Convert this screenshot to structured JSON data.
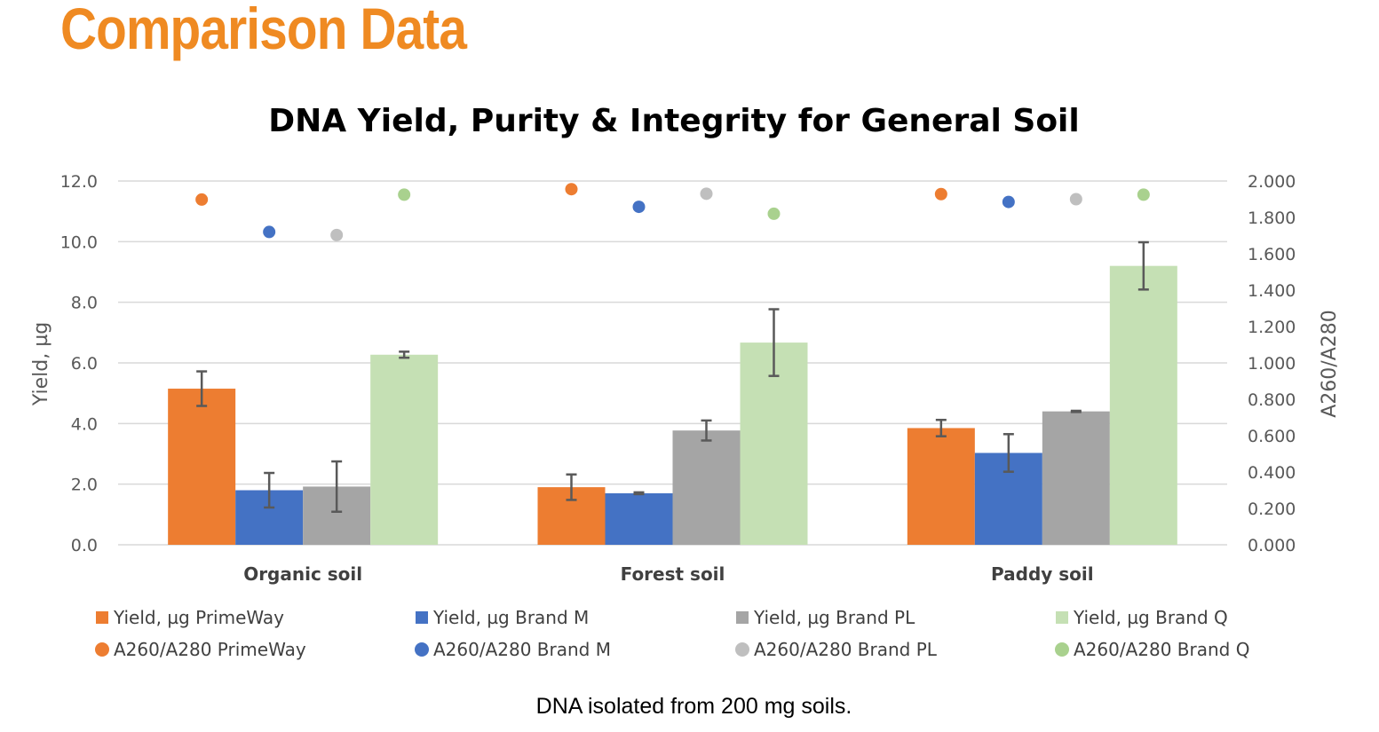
{
  "heading": "Comparison Data",
  "caption": "DNA isolated from 200 mg soils.",
  "chart_data": {
    "type": "bar",
    "title": "DNA Yield, Purity & Integrity for General Soil",
    "categories": [
      "Organic soil",
      "Forest soil",
      "Paddy soil"
    ],
    "ylabel": "Yield, µg",
    "y2label": "A260/A280",
    "ylim": [
      0,
      12
    ],
    "y2lim": [
      0,
      2
    ],
    "yticks": [
      "0.0",
      "2.0",
      "4.0",
      "6.0",
      "8.0",
      "10.0",
      "12.0"
    ],
    "y2ticks": [
      "0.000",
      "0.200",
      "0.400",
      "0.600",
      "0.800",
      "1.000",
      "1.200",
      "1.400",
      "1.600",
      "1.800",
      "2.000"
    ],
    "grid": true,
    "legend_position": "bottom",
    "series": [
      {
        "name": "Yield, µg PrimeWay",
        "kind": "bar",
        "axis": "left",
        "color": "#ed7d31",
        "values": [
          5.15,
          1.9,
          3.85
        ],
        "errors": [
          0.57,
          0.42,
          0.27
        ]
      },
      {
        "name": "Yield, µg Brand M",
        "kind": "bar",
        "axis": "left",
        "color": "#4472c4",
        "values": [
          1.8,
          1.7,
          3.03
        ],
        "errors": [
          0.57,
          0.03,
          0.62
        ]
      },
      {
        "name": "Yield, µg Brand PL",
        "kind": "bar",
        "axis": "left",
        "color": "#a5a5a5",
        "values": [
          1.92,
          3.77,
          4.4
        ],
        "errors": [
          0.83,
          0.33,
          0.02
        ]
      },
      {
        "name": "Yield, µg Brand Q",
        "kind": "bar",
        "axis": "left",
        "color": "#c5e0b4",
        "values": [
          6.27,
          6.67,
          9.2
        ],
        "errors": [
          0.1,
          1.1,
          0.78
        ]
      },
      {
        "name": "A260/A280 PrimeWay",
        "kind": "dot",
        "axis": "right",
        "color": "#ed7d31",
        "values": [
          1.898,
          1.955,
          1.928
        ]
      },
      {
        "name": "A260/A280 Brand M",
        "kind": "dot",
        "axis": "right",
        "color": "#4472c4",
        "values": [
          1.72,
          1.858,
          1.885
        ]
      },
      {
        "name": "A260/A280 Brand PL",
        "kind": "dot",
        "axis": "right",
        "color": "#bfbfbf",
        "values": [
          1.703,
          1.93,
          1.9
        ]
      },
      {
        "name": "A260/A280 Brand Q",
        "kind": "dot",
        "axis": "right",
        "color": "#a9d18e",
        "values": [
          1.925,
          1.82,
          1.925
        ]
      }
    ]
  }
}
